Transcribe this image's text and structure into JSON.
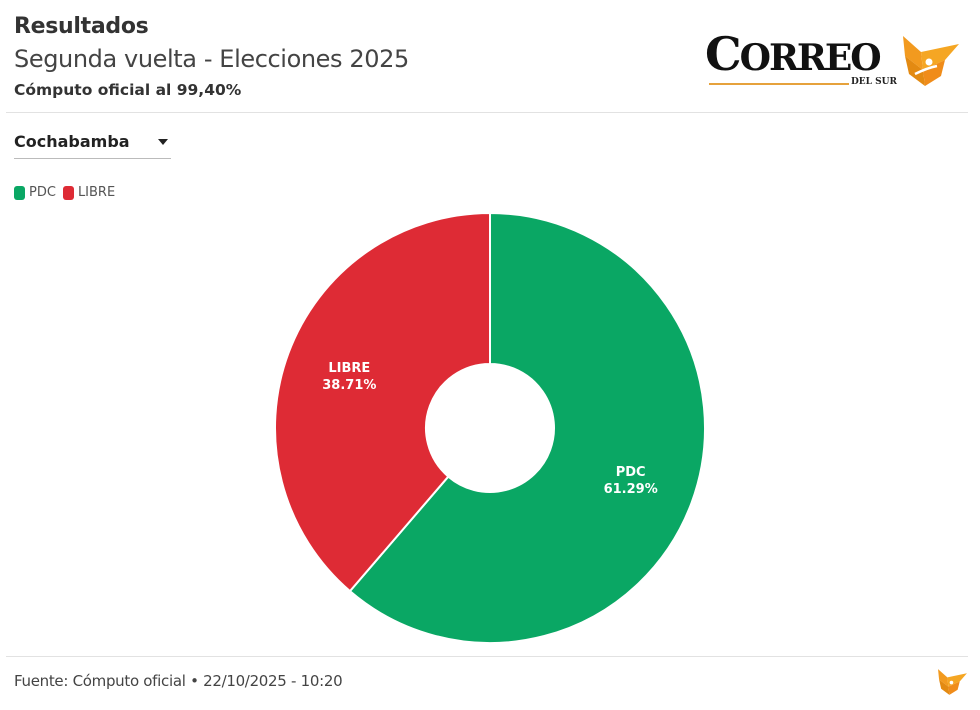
{
  "header": {
    "title": "Resultados",
    "subtitle": "Segunda vuelta - Elecciones 2025",
    "note": "Cómputo oficial al 99,40%"
  },
  "logo": {
    "word_first": "C",
    "word_rest": "ORREO",
    "sub": "DEL SUR",
    "accent_color": "#f29a1f",
    "icon": "correo-bird-icon"
  },
  "filter": {
    "selected": "Cochabamba",
    "icon": "caret-down-icon"
  },
  "legend": [
    {
      "label": "PDC",
      "color": "#0aa764"
    },
    {
      "label": "LIBRE",
      "color": "#de2b35"
    }
  ],
  "chart_data": {
    "type": "pie",
    "variant": "donut",
    "title": "Segunda vuelta - Elecciones 2025",
    "categories": [
      "PDC",
      "LIBRE"
    ],
    "values": [
      61.29,
      38.71
    ],
    "labels": [
      "61.29%",
      "38.71%"
    ],
    "colors": [
      "#0aa764",
      "#de2b35"
    ],
    "start_angle": "top",
    "direction": "clockwise",
    "legend_position": "top-left"
  },
  "footer": {
    "source": "Fuente: Cómputo oficial • 22/10/2025 - 10:20"
  }
}
